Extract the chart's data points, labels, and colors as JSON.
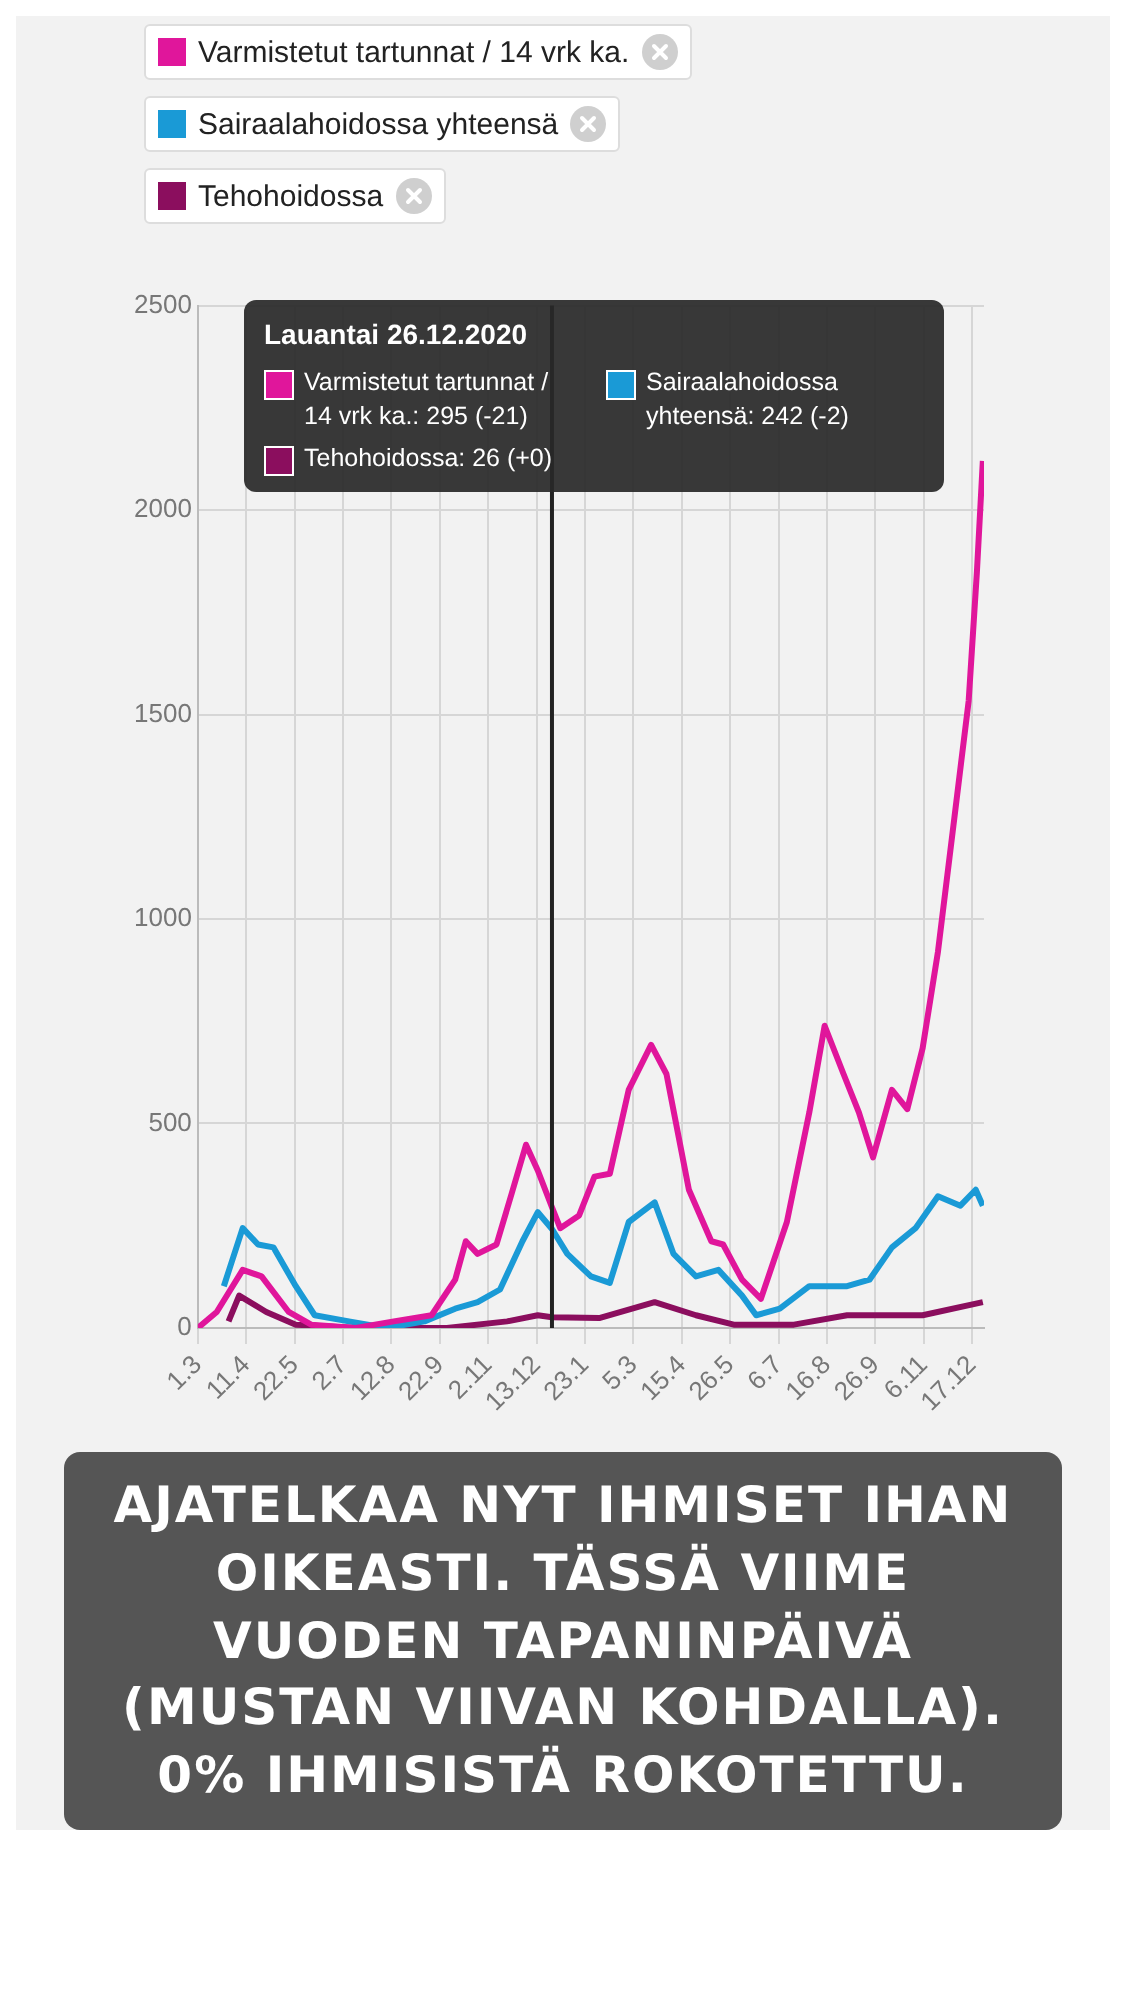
{
  "chart_data": {
    "type": "line",
    "legend": "top",
    "grid": true,
    "marker": "none",
    "xlim": [
      "2020-03-01",
      "2021-12-27"
    ],
    "xticks": [
      {
        "value": "2020-03-01",
        "label": "1.3"
      },
      {
        "value": "2020-04-11",
        "label": "11.4"
      },
      {
        "value": "2020-05-22",
        "label": "22.5"
      },
      {
        "value": "2020-07-02",
        "label": "2.7"
      },
      {
        "value": "2020-08-12",
        "label": "12.8"
      },
      {
        "value": "2020-09-22",
        "label": "22.9"
      },
      {
        "value": "2020-11-02",
        "label": "2.11"
      },
      {
        "value": "2020-12-13",
        "label": "13.12"
      },
      {
        "value": "2021-01-23",
        "label": "23.1"
      },
      {
        "value": "2021-03-05",
        "label": "5.3"
      },
      {
        "value": "2021-04-15",
        "label": "15.4"
      },
      {
        "value": "2021-05-26",
        "label": "26.5"
      },
      {
        "value": "2021-07-06",
        "label": "6.7"
      },
      {
        "value": "2021-08-16",
        "label": "16.8"
      },
      {
        "value": "2021-09-26",
        "label": "26.9"
      },
      {
        "value": "2021-11-06",
        "label": "6.11"
      },
      {
        "value": "2021-12-17",
        "label": "17.12"
      }
    ],
    "ylim": [
      0,
      2500
    ],
    "yticks": [
      0,
      500,
      1000,
      1500,
      2000,
      2500
    ],
    "ref_lines": [
      {
        "axis": "x",
        "value": "2020-12-26",
        "color": "#222222"
      }
    ],
    "series": [
      {
        "name": "Varmistetut tartunnat / 14 vrk ka.",
        "color": "#e0169b",
        "x": [
          "2020-03-01",
          "2020-03-17",
          "2020-04-08",
          "2020-04-24",
          "2020-05-17",
          "2020-06-05",
          "2020-07-13",
          "2020-08-14",
          "2020-09-15",
          "2020-10-05",
          "2020-10-14",
          "2020-10-24",
          "2020-11-09",
          "2020-11-22",
          "2020-12-04",
          "2020-12-14",
          "2020-12-26",
          "2021-01-02",
          "2021-01-18",
          "2021-01-31",
          "2021-02-13",
          "2021-03-01",
          "2021-03-20",
          "2021-04-02",
          "2021-04-21",
          "2021-05-10",
          "2021-05-20",
          "2021-06-05",
          "2021-06-21",
          "2021-07-13",
          "2021-08-01",
          "2021-08-14",
          "2021-08-30",
          "2021-09-12",
          "2021-09-24",
          "2021-10-10",
          "2021-10-23",
          "2021-11-05",
          "2021-11-18",
          "2021-12-02",
          "2021-12-14",
          "2021-12-21",
          "2021-12-26"
        ],
        "values": [
          0,
          39,
          142,
          126,
          39,
          8,
          0,
          16,
          31,
          118,
          212,
          181,
          204,
          330,
          448,
          385,
          295,
          244,
          275,
          370,
          377,
          582,
          692,
          621,
          338,
          212,
          204,
          118,
          71,
          259,
          527,
          739,
          621,
          527,
          417,
          582,
          535,
          684,
          920,
          1250,
          1533,
          1849,
          2120
        ]
      },
      {
        "name": "Sairaalahoidossa yhteensä",
        "color": "#1a9ad6",
        "x": [
          "2020-03-23",
          "2020-04-08",
          "2020-04-21",
          "2020-05-04",
          "2020-05-23",
          "2020-06-08",
          "2020-07-07",
          "2020-08-08",
          "2020-09-09",
          "2020-10-05",
          "2020-10-24",
          "2020-11-12",
          "2020-12-01",
          "2020-12-14",
          "2020-12-26",
          "2021-01-08",
          "2021-01-28",
          "2021-02-13",
          "2021-03-01",
          "2021-03-23",
          "2021-04-08",
          "2021-04-27",
          "2021-05-16",
          "2021-06-05",
          "2021-06-17",
          "2021-07-07",
          "2021-08-01",
          "2021-09-02",
          "2021-09-21",
          "2021-10-10",
          "2021-10-30",
          "2021-11-18",
          "2021-12-07",
          "2021-12-20",
          "2021-12-26"
        ],
        "values": [
          102,
          244,
          204,
          197,
          102,
          31,
          16,
          0,
          16,
          47,
          63,
          94,
          212,
          283,
          242,
          181,
          126,
          110,
          259,
          307,
          181,
          126,
          142,
          79,
          31,
          47,
          102,
          102,
          118,
          197,
          244,
          322,
          299,
          338,
          299
        ]
      },
      {
        "name": "Tehohoidossa",
        "color": "#8b0e5e",
        "x": [
          "2020-03-27",
          "2020-04-05",
          "2020-04-28",
          "2020-05-23",
          "2020-07-13",
          "2020-09-28",
          "2020-11-18",
          "2020-12-14",
          "2020-12-26",
          "2021-02-04",
          "2021-03-23",
          "2021-04-27",
          "2021-05-29",
          "2021-07-19",
          "2021-09-02",
          "2021-11-05",
          "2021-12-26"
        ],
        "values": [
          16,
          79,
          39,
          8,
          0,
          0,
          16,
          31,
          26,
          24,
          63,
          31,
          8,
          8,
          31,
          31,
          63
        ]
      }
    ],
    "annotations": [
      "Lauantai 26.12.2020",
      "Varmistetut tartunnat / 14 vrk ka.: 295 (-21)",
      "Sairaalahoidossa yhteensä: 242 (-2)",
      "Tehohoidossa: 26 (+0)",
      "AJATELKAA NYT IHMISET IHAN OIKEASTI. TÄSSÄ VIIME VUODEN TAPANINPÄIVÄ (MUSTAN VIIVAN KOHDALLA). 0% IHMISISTÄ ROKOTETTU."
    ]
  }
}
